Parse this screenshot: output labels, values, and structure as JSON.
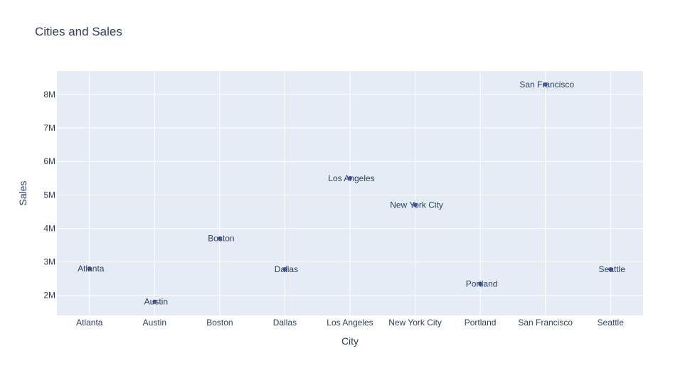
{
  "chart_data": {
    "type": "scatter",
    "title": "Cities and Sales",
    "xlabel": "City",
    "ylabel": "Sales",
    "ylim": [
      1400000,
      8700000
    ],
    "yticks": [
      2000000,
      3000000,
      4000000,
      5000000,
      6000000,
      7000000,
      8000000
    ],
    "ytick_labels": [
      "2M",
      "3M",
      "4M",
      "5M",
      "6M",
      "7M",
      "8M"
    ],
    "grid": true,
    "categories": [
      "Atlanta",
      "Austin",
      "Boston",
      "Dallas",
      "Los Angeles",
      "New York City",
      "Portland",
      "San Francisco",
      "Seattle"
    ],
    "series": [
      {
        "values": [
          2800000,
          1810000,
          3700000,
          2780000,
          5500000,
          4700000,
          2340000,
          8300000,
          2780000
        ],
        "labels": [
          "Atlanta",
          "Austin",
          "Boston",
          "Dallas",
          "Los Angeles",
          "New York City",
          "Portland",
          "San Francisco",
          "Seattle"
        ]
      }
    ],
    "colors": {
      "plot_bg": "#e5ecf6",
      "grid": "#ffffff",
      "marker": "#4661b5",
      "text": "#2a3f5f"
    }
  }
}
